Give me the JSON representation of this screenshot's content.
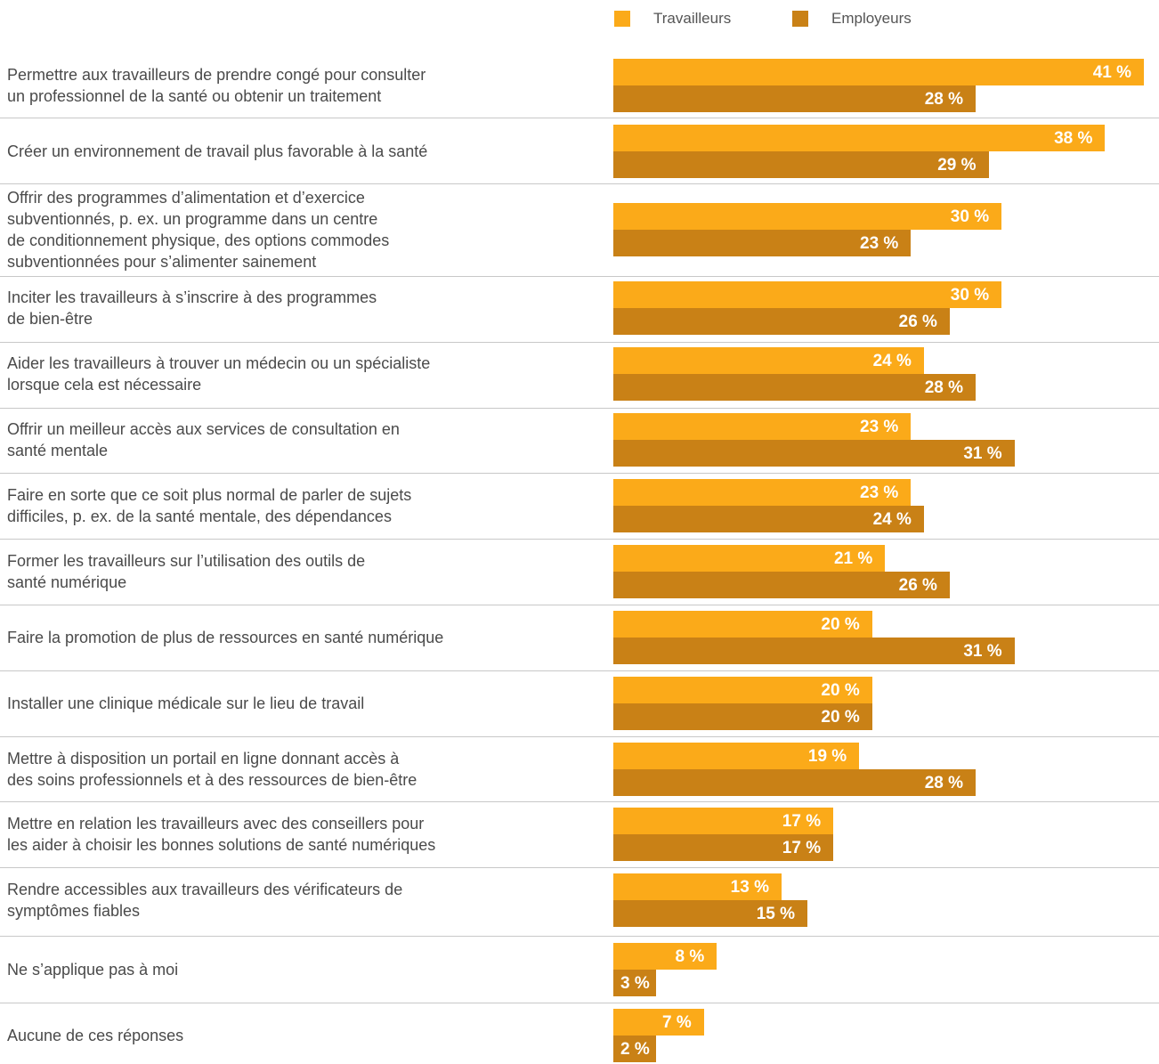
{
  "legend": {
    "workers_label": "Travailleurs",
    "employers_label": "Employeurs"
  },
  "colors": {
    "workers": "#FBAA19",
    "employers": "#C98116",
    "divider": "#C8C8C8"
  },
  "chart_data": {
    "type": "bar",
    "orientation": "horizontal",
    "grid": false,
    "legend_position": "top-right",
    "value_suffix": " %",
    "categories": [
      "Permettre aux travailleurs de prendre congé pour consulter\nun professionnel de la santé ou obtenir un traitement",
      "Créer un environnement de travail plus favorable à la santé",
      "Offrir des programmes d’alimentation et d’exercice\nsubventionnés, p. ex. un programme dans un centre\nde conditionnement physique, des options commodes\nsubventionnées pour s’alimenter sainement",
      "Inciter les travailleurs à s’inscrire à des programmes\nde bien-être",
      "Aider les travailleurs à trouver un médecin ou un spécialiste\nlorsque cela est nécessaire",
      "Offrir un meilleur accès aux services de consultation en\nsanté mentale",
      "Faire en sorte que ce soit plus normal de parler de sujets\ndifficiles, p. ex. de la santé mentale, des dépendances",
      "Former les travailleurs sur l’utilisation des outils de\nsanté numérique",
      "Faire la promotion de plus de ressources en santé numérique",
      "Installer une clinique médicale sur le lieu de travail",
      "Mettre à disposition un portail en ligne donnant accès à\ndes soins professionnels et à des ressources de bien-être",
      "Mettre en relation les travailleurs avec des conseillers pour\nles aider à choisir les bonnes solutions de santé numériques",
      "Rendre accessibles aux travailleurs des vérificateurs de\nsymptômes fiables",
      "Ne s’applique pas à moi",
      "Aucune de ces réponses"
    ],
    "series": [
      {
        "name": "Travailleurs",
        "values": [
          41,
          38,
          30,
          30,
          24,
          23,
          23,
          21,
          20,
          20,
          19,
          17,
          13,
          8,
          7
        ]
      },
      {
        "name": "Employeurs",
        "values": [
          28,
          29,
          23,
          26,
          28,
          31,
          24,
          26,
          31,
          20,
          28,
          17,
          15,
          3,
          2
        ]
      }
    ]
  }
}
